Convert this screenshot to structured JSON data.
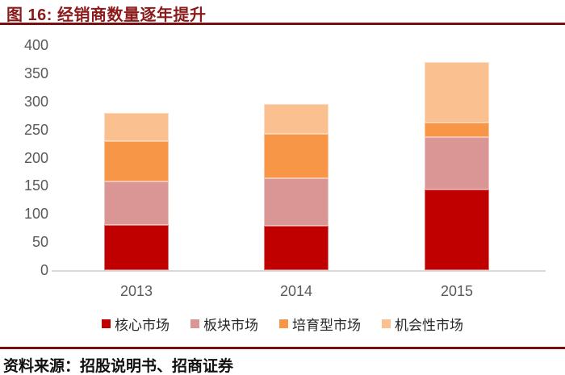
{
  "header": {
    "title": "图 16: 经销商数量逐年提升"
  },
  "footer": {
    "source": "资料来源：招股说明书、招商证券"
  },
  "colors": {
    "title_text": "#8B1A1A",
    "rule_line": "#7A0F12",
    "axis_text": "#595959",
    "axis_line": "#D9D9D9",
    "source_text": "#111111"
  },
  "chart_data": {
    "type": "bar",
    "stacked": true,
    "title": "经销商数量逐年提升",
    "categories": [
      "2013",
      "2014",
      "2015"
    ],
    "series": [
      {
        "name": "核心市场",
        "color": "#C00000",
        "values": [
          80,
          79,
          143
        ]
      },
      {
        "name": "板块市场",
        "color": "#D99694",
        "values": [
          78,
          85,
          93
        ]
      },
      {
        "name": "培育型市场",
        "color": "#F79646",
        "values": [
          72,
          78,
          27
        ]
      },
      {
        "name": "机会性市场",
        "color": "#FAC090",
        "values": [
          50,
          53,
          107
        ]
      }
    ],
    "totals": [
      280,
      295,
      370
    ],
    "xlabel": "",
    "ylabel": "",
    "ylim": [
      0,
      400
    ],
    "ytick_step": 50,
    "grid": false,
    "legend_position": "bottom"
  }
}
